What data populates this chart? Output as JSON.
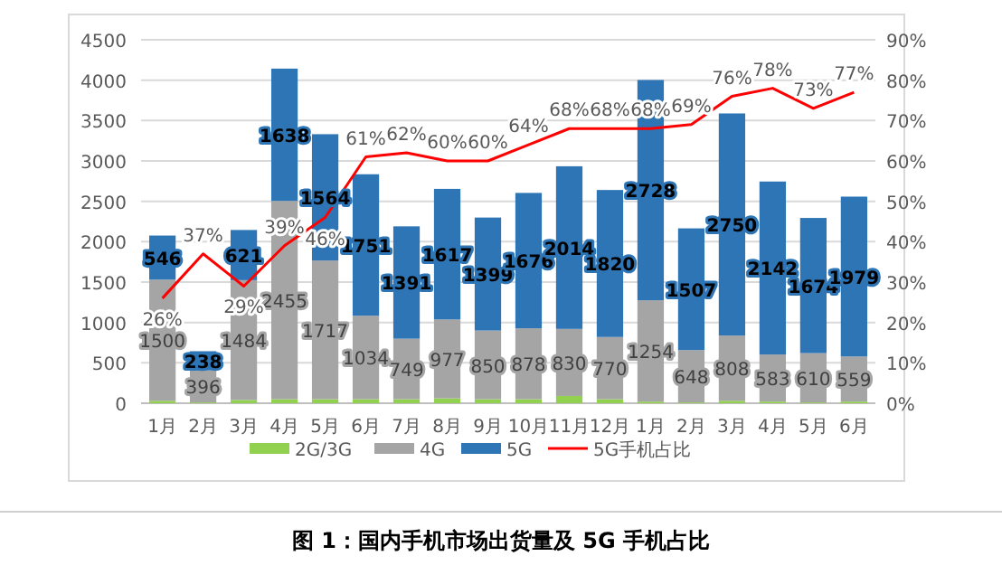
{
  "chart_data": {
    "type": "bar",
    "stacked": true,
    "title": "图 1：国内手机市场出货量及 5G 手机占比",
    "categories": [
      "1月",
      "2月",
      "3月",
      "4月",
      "5月",
      "6月",
      "7月",
      "8月",
      "9月",
      "10月",
      "11月",
      "12月",
      "1月",
      "2月",
      "3月",
      "4月",
      "5月",
      "6月"
    ],
    "series": [
      {
        "name": "2G/3G",
        "color": "#92d050",
        "values": [
          30,
          10,
          40,
          50,
          50,
          50,
          50,
          60,
          50,
          50,
          90,
          50,
          20,
          10,
          30,
          20,
          10,
          20
        ]
      },
      {
        "name": "4G",
        "color": "#a5a5a5",
        "values": [
          1500,
          396,
          1484,
          2455,
          1717,
          1034,
          749,
          977,
          850,
          878,
          830,
          770,
          1254,
          648,
          808,
          583,
          610,
          559
        ],
        "value_labels": [
          "1500",
          "396",
          "1484",
          "2455",
          "1717",
          "1034",
          "749",
          "977",
          "850",
          "878",
          "830",
          "770",
          "1254",
          "648",
          "808",
          "583",
          "610",
          "559"
        ]
      },
      {
        "name": "5G",
        "color": "#2e75b6",
        "values": [
          546,
          238,
          621,
          1638,
          1564,
          1751,
          1391,
          1617,
          1399,
          1676,
          2014,
          1820,
          2728,
          1507,
          2750,
          2142,
          1674,
          1979
        ],
        "value_labels": [
          "546",
          "238",
          "621",
          "1638",
          "1564",
          "1751",
          "1391",
          "1617",
          "1399",
          "1676",
          "2014",
          "1820",
          "2728",
          "1507",
          "2750",
          "2142",
          "1674",
          "1979"
        ]
      },
      {
        "name": "5G手机占比",
        "type": "line",
        "axis": "y2",
        "color": "#ff0000",
        "values": [
          26,
          37,
          29,
          39,
          46,
          61,
          62,
          60,
          60,
          64,
          68,
          68,
          68,
          69,
          76,
          78,
          73,
          77
        ],
        "value_labels": [
          "26%",
          "37%",
          "29%",
          "39%",
          "46%",
          "61%",
          "62%",
          "60%",
          "60%",
          "64%",
          "68%",
          "68%",
          "68%",
          "69%",
          "76%",
          "78%",
          "73%",
          "77%"
        ]
      }
    ],
    "ylim": [
      0,
      4500
    ],
    "yticks": [
      0,
      500,
      1000,
      1500,
      2000,
      2500,
      3000,
      3500,
      4000,
      4500
    ],
    "y2lim": [
      0,
      90
    ],
    "y2ticks": [
      {
        "value": 0,
        "label": "0%"
      },
      {
        "value": 10,
        "label": "10%"
      },
      {
        "value": 20,
        "label": "20%"
      },
      {
        "value": 30,
        "label": "30%"
      },
      {
        "value": 40,
        "label": "40%"
      },
      {
        "value": 50,
        "label": "50%"
      },
      {
        "value": 60,
        "label": "60%"
      },
      {
        "value": 70,
        "label": "70%"
      },
      {
        "value": 80,
        "label": "80%"
      },
      {
        "value": 90,
        "label": "90%"
      }
    ],
    "grid": "y",
    "legend": "bottom",
    "marker": "none",
    "line_style": "solid"
  }
}
